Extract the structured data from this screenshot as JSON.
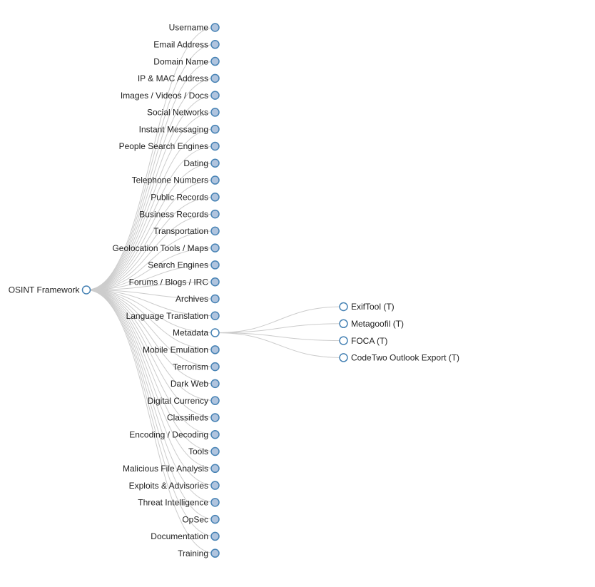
{
  "colors": {
    "link": "#cccccc",
    "node_stroke": "#4682b4",
    "collapsed_fill": "#b0c4de",
    "expanded_fill": "#ffffff",
    "text": "#222222"
  },
  "root": {
    "label": "OSINT Framework",
    "expanded": true
  },
  "categories": [
    {
      "label": "Username",
      "expanded": false
    },
    {
      "label": "Email Address",
      "expanded": false
    },
    {
      "label": "Domain Name",
      "expanded": false
    },
    {
      "label": "IP & MAC Address",
      "expanded": false
    },
    {
      "label": "Images / Videos / Docs",
      "expanded": false
    },
    {
      "label": "Social Networks",
      "expanded": false
    },
    {
      "label": "Instant Messaging",
      "expanded": false
    },
    {
      "label": "People Search Engines",
      "expanded": false
    },
    {
      "label": "Dating",
      "expanded": false
    },
    {
      "label": "Telephone Numbers",
      "expanded": false
    },
    {
      "label": "Public Records",
      "expanded": false
    },
    {
      "label": "Business Records",
      "expanded": false
    },
    {
      "label": "Transportation",
      "expanded": false
    },
    {
      "label": "Geolocation Tools / Maps",
      "expanded": false
    },
    {
      "label": "Search Engines",
      "expanded": false
    },
    {
      "label": "Forums / Blogs / IRC",
      "expanded": false
    },
    {
      "label": "Archives",
      "expanded": false
    },
    {
      "label": "Language Translation",
      "expanded": false
    },
    {
      "label": "Metadata",
      "expanded": true,
      "children": [
        {
          "label": "ExifTool (T)",
          "expanded": true
        },
        {
          "label": "Metagoofil (T)",
          "expanded": true
        },
        {
          "label": "FOCA (T)",
          "expanded": true
        },
        {
          "label": "CodeTwo Outlook Export (T)",
          "expanded": true
        }
      ]
    },
    {
      "label": "Mobile Emulation",
      "expanded": false
    },
    {
      "label": "Terrorism",
      "expanded": false
    },
    {
      "label": "Dark Web",
      "expanded": false
    },
    {
      "label": "Digital Currency",
      "expanded": false
    },
    {
      "label": "Classifieds",
      "expanded": false
    },
    {
      "label": "Encoding / Decoding",
      "expanded": false
    },
    {
      "label": "Tools",
      "expanded": false
    },
    {
      "label": "Malicious File Analysis",
      "expanded": false
    },
    {
      "label": "Exploits & Advisories",
      "expanded": false
    },
    {
      "label": "Threat Intelligence",
      "expanded": false
    },
    {
      "label": "OpSec",
      "expanded": false
    },
    {
      "label": "Documentation",
      "expanded": false
    },
    {
      "label": "Training",
      "expanded": false
    }
  ]
}
